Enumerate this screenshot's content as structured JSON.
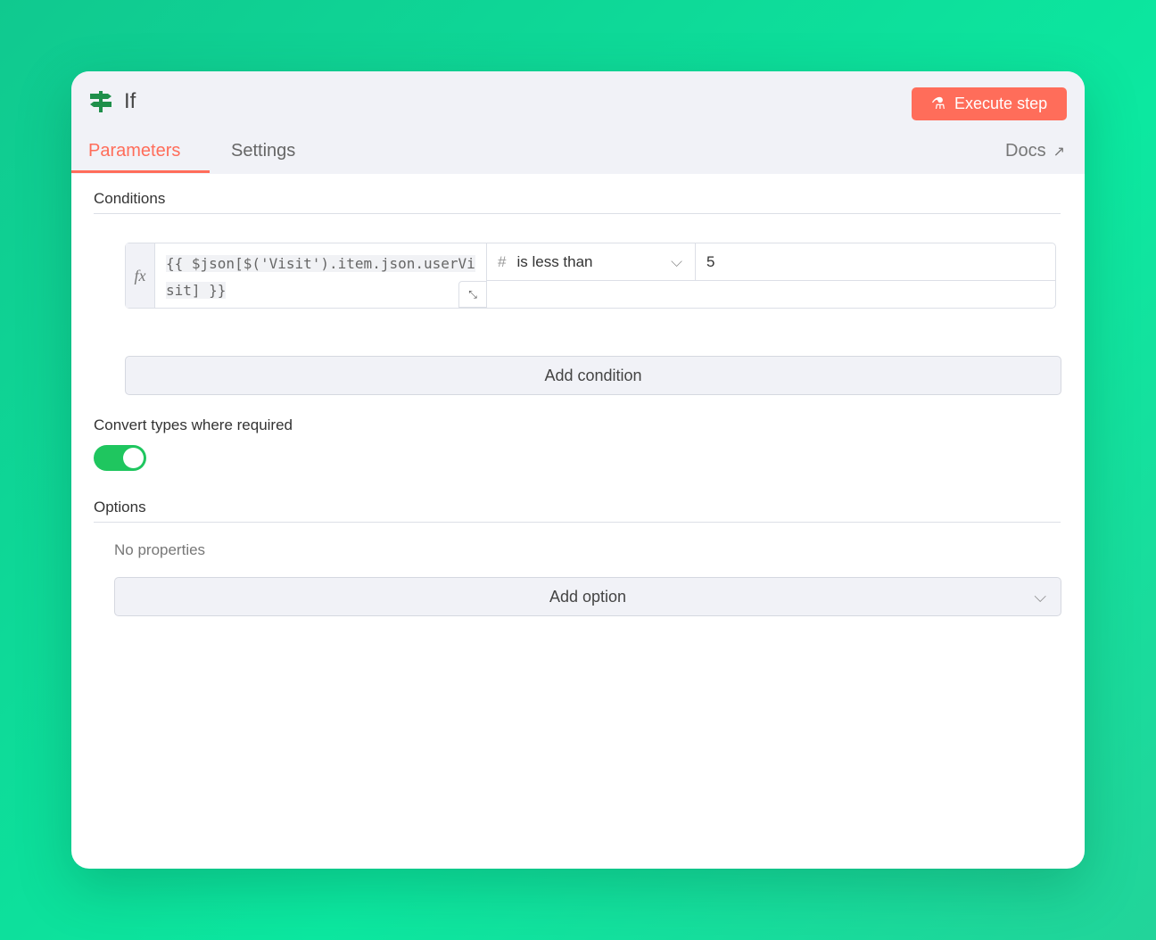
{
  "header": {
    "title": "If",
    "icon": "signpost-icon",
    "execute_label": "Execute step",
    "tabs": [
      {
        "label": "Parameters",
        "active": true
      },
      {
        "label": "Settings"
      }
    ],
    "docs_label": "Docs"
  },
  "conditions": {
    "heading": "Conditions",
    "rows": [
      {
        "expression": "{{ $json[$('Visit').item.json.userVisit] }}",
        "operator": "is less than",
        "operator_type_icon": "#",
        "value": "5"
      }
    ],
    "add_label": "Add condition"
  },
  "convert": {
    "label": "Convert types where required",
    "enabled": true
  },
  "options": {
    "heading": "Options",
    "empty_text": "No properties",
    "add_label": "Add option"
  },
  "colors": {
    "accent": "#ff6d5a",
    "toggle": "#1fc65f",
    "icon": "#1f8f4a"
  }
}
